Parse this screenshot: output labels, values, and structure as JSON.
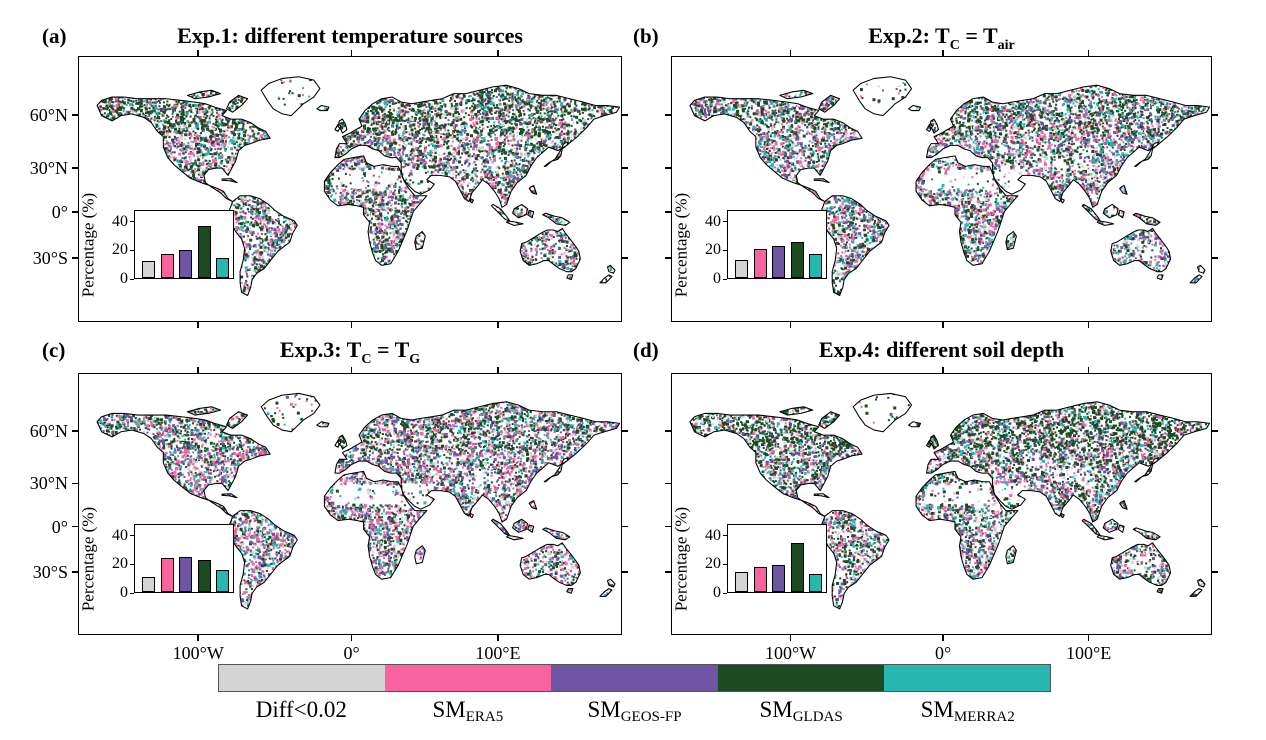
{
  "panels": [
    {
      "label": "(a)",
      "title": [
        [
          "Exp.1: different temperature sources",
          false
        ]
      ],
      "bar_values": [
        12,
        17,
        20,
        37,
        14
      ]
    },
    {
      "label": "(b)",
      "title": [
        [
          "Exp.2: T",
          false
        ],
        [
          "C",
          true
        ],
        [
          " = T",
          false
        ],
        [
          "air",
          true
        ]
      ],
      "bar_values": [
        13,
        21,
        23,
        26,
        17
      ]
    },
    {
      "label": "(c)",
      "title": [
        [
          "Exp.3: T",
          false
        ],
        [
          "C",
          true
        ],
        [
          " = T",
          false
        ],
        [
          "G",
          true
        ]
      ],
      "bar_values": [
        11,
        24,
        25,
        23,
        16
      ]
    },
    {
      "label": "(d)",
      "title": [
        [
          "Exp.4: different soil depth",
          false
        ]
      ],
      "bar_values": [
        14,
        18,
        19,
        35,
        13
      ]
    }
  ],
  "axes": {
    "lat_tick_labels": [
      "60°N",
      "30°N",
      "0°",
      "30°S"
    ],
    "lon_tick_labels": [
      "100°W",
      "0°",
      "100°E"
    ],
    "inset_ylabel": "Percentage (%)",
    "inset_ytick_labels": [
      "40",
      "20",
      "0"
    ]
  },
  "legend": {
    "entries": [
      {
        "label_main": "Diff<0.02",
        "label_sub": "",
        "color": "#d4d4d4"
      },
      {
        "label_main": "SM",
        "label_sub": "ERA5",
        "color": "#f9639f"
      },
      {
        "label_main": "SM",
        "label_sub": "GEOS-FP",
        "color": "#6d55a3"
      },
      {
        "label_main": "SM",
        "label_sub": "GLDAS",
        "color": "#1c4a21"
      },
      {
        "label_main": "SM",
        "label_sub": "MERRA2",
        "color": "#26b8b0"
      }
    ]
  },
  "chart_data": [
    {
      "type": "bar",
      "title": "Exp.1: different temperature sources",
      "categories": [
        "Diff<0.02",
        "SM_ERA5",
        "SM_GEOS-FP",
        "SM_GLDAS",
        "SM_MERRA2"
      ],
      "values": [
        12,
        17,
        20,
        37,
        14
      ],
      "colors": [
        "#d4d4d4",
        "#f9639f",
        "#6d55a3",
        "#1c4a21",
        "#26b8b0"
      ],
      "xlabel": "",
      "ylabel": "Percentage (%)",
      "ylim": [
        0,
        48
      ],
      "yticks": [
        0,
        20,
        40
      ],
      "legend_position": "none",
      "grid": false
    },
    {
      "type": "bar",
      "title": "Exp.2: T_C = T_air",
      "categories": [
        "Diff<0.02",
        "SM_ERA5",
        "SM_GEOS-FP",
        "SM_GLDAS",
        "SM_MERRA2"
      ],
      "values": [
        13,
        21,
        23,
        26,
        17
      ],
      "colors": [
        "#d4d4d4",
        "#f9639f",
        "#6d55a3",
        "#1c4a21",
        "#26b8b0"
      ],
      "xlabel": "",
      "ylabel": "Percentage (%)",
      "ylim": [
        0,
        48
      ],
      "yticks": [
        0,
        20,
        40
      ],
      "legend_position": "none",
      "grid": false
    },
    {
      "type": "bar",
      "title": "Exp.3: T_C = T_G",
      "categories": [
        "Diff<0.02",
        "SM_ERA5",
        "SM_GEOS-FP",
        "SM_GLDAS",
        "SM_MERRA2"
      ],
      "values": [
        11,
        24,
        25,
        23,
        16
      ],
      "colors": [
        "#d4d4d4",
        "#f9639f",
        "#6d55a3",
        "#1c4a21",
        "#26b8b0"
      ],
      "xlabel": "",
      "ylabel": "Percentage (%)",
      "ylim": [
        0,
        48
      ],
      "yticks": [
        0,
        20,
        40
      ],
      "legend_position": "none",
      "grid": false
    },
    {
      "type": "bar",
      "title": "Exp.4: different soil depth",
      "categories": [
        "Diff<0.02",
        "SM_ERA5",
        "SM_GEOS-FP",
        "SM_GLDAS",
        "SM_MERRA2"
      ],
      "values": [
        14,
        18,
        19,
        35,
        13
      ],
      "colors": [
        "#d4d4d4",
        "#f9639f",
        "#6d55a3",
        "#1c4a21",
        "#26b8b0"
      ],
      "xlabel": "",
      "ylabel": "Percentage (%)",
      "ylim": [
        0,
        48
      ],
      "yticks": [
        0,
        20,
        40
      ],
      "legend_position": "none",
      "grid": false
    }
  ]
}
